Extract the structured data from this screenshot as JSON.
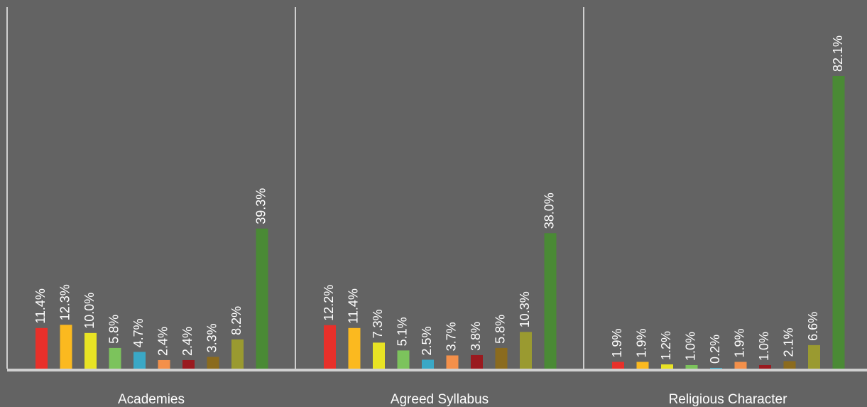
{
  "chart_data": {
    "type": "bar",
    "categories": [
      "Academies",
      "Agreed Syllabus",
      "Religious Character"
    ],
    "series": [
      {
        "color": "#e8302a",
        "values": [
          11.4,
          12.2,
          1.9
        ],
        "value_labels": [
          "11.4%",
          "12.2%",
          "1.9%"
        ]
      },
      {
        "color": "#fbb91f",
        "values": [
          12.3,
          11.4,
          1.9
        ],
        "value_labels": [
          "12.3%",
          "11.4%",
          "1.9%"
        ]
      },
      {
        "color": "#e8e324",
        "values": [
          10.0,
          7.3,
          1.2
        ],
        "value_labels": [
          "10.0%",
          "7.3%",
          "1.2%"
        ]
      },
      {
        "color": "#7cc35c",
        "values": [
          5.8,
          5.1,
          1.0
        ],
        "value_labels": [
          "5.8%",
          "5.1%",
          "1.0%"
        ]
      },
      {
        "color": "#3aa8c6",
        "values": [
          4.7,
          2.5,
          0.2
        ],
        "value_labels": [
          "4.7%",
          "2.5%",
          "0.2%"
        ]
      },
      {
        "color": "#f4904a",
        "values": [
          2.4,
          3.7,
          1.9
        ],
        "value_labels": [
          "2.4%",
          "3.7%",
          "1.9%"
        ]
      },
      {
        "color": "#9a1a1f",
        "values": [
          2.4,
          3.8,
          1.0
        ],
        "value_labels": [
          "2.4%",
          "3.8%",
          "1.0%"
        ]
      },
      {
        "color": "#8b6b1e",
        "values": [
          3.3,
          5.8,
          2.1
        ],
        "value_labels": [
          "3.3%",
          "5.8%",
          "2.1%"
        ]
      },
      {
        "color": "#9a9a30",
        "values": [
          8.2,
          10.3,
          6.6
        ],
        "value_labels": [
          "8.2%",
          "10.3%",
          "6.6%"
        ]
      },
      {
        "color": "#4a8a35",
        "values": [
          39.3,
          38.0,
          82.1
        ],
        "value_labels": [
          "39.3%",
          "38.0%",
          "82.1%"
        ]
      }
    ]
  }
}
